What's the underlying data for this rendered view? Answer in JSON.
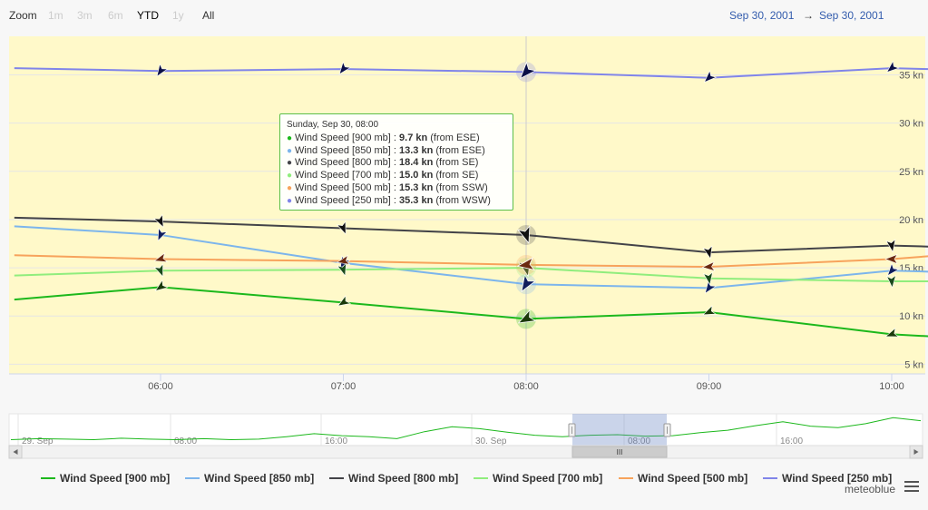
{
  "zoom": {
    "label": "Zoom",
    "buttons": [
      {
        "label": "1m",
        "state": "disabled"
      },
      {
        "label": "3m",
        "state": "disabled"
      },
      {
        "label": "6m",
        "state": "disabled"
      },
      {
        "label": "YTD",
        "state": "active"
      },
      {
        "label": "1y",
        "state": "disabled"
      },
      {
        "label": "All",
        "state": "normal"
      }
    ]
  },
  "range": {
    "from": "Sep 30, 2001",
    "arrow": "→",
    "to": "Sep 30, 2001"
  },
  "tooltip": {
    "header": "Sunday, Sep 30, 08:00",
    "rows": [
      {
        "name": "Wind Speed [900 mb]",
        "value": "9.7 kn",
        "dir": "(from ESE)",
        "color": "#1cb81c"
      },
      {
        "name": "Wind Speed [850 mb]",
        "value": "13.3 kn",
        "dir": "(from ESE)",
        "color": "#7cb5ec"
      },
      {
        "name": "Wind Speed [800 mb]",
        "value": "18.4 kn",
        "dir": "(from SE)",
        "color": "#434348"
      },
      {
        "name": "Wind Speed [700 mb]",
        "value": "15.0 kn",
        "dir": "(from SE)",
        "color": "#90ed7d"
      },
      {
        "name": "Wind Speed [500 mb]",
        "value": "15.3 kn",
        "dir": "(from SSW)",
        "color": "#f7a35c"
      },
      {
        "name": "Wind Speed [250 mb]",
        "value": "35.3 kn",
        "dir": "(from WSW)",
        "color": "#8085e9"
      }
    ]
  },
  "credit": "meteoblue",
  "chart_data": {
    "type": "line",
    "x": [
      "05:12",
      "06:00",
      "07:00",
      "08:00",
      "09:00",
      "10:00",
      "10:12"
    ],
    "xticks": [
      "06:00",
      "07:00",
      "08:00",
      "09:00",
      "10:00"
    ],
    "yticks": [
      "5 kn",
      "10 kn",
      "15 kn",
      "20 kn",
      "25 kn",
      "30 kn",
      "35 kn"
    ],
    "ylim": [
      4,
      39
    ],
    "series": [
      {
        "name": "Wind Speed [900 mb]",
        "color": "#1cb81c",
        "values": [
          11.7,
          13.0,
          11.4,
          9.7,
          10.4,
          8.1,
          7.9
        ]
      },
      {
        "name": "Wind Speed [850 mb]",
        "color": "#7cb5ec",
        "values": [
          19.3,
          18.4,
          15.5,
          13.3,
          12.9,
          14.7,
          14.6
        ]
      },
      {
        "name": "Wind Speed [800 mb]",
        "color": "#434348",
        "values": [
          20.2,
          19.8,
          19.1,
          18.4,
          16.6,
          17.3,
          17.2
        ]
      },
      {
        "name": "Wind Speed [700 mb]",
        "color": "#90ed7d",
        "values": [
          14.2,
          14.7,
          14.8,
          15.0,
          13.9,
          13.6,
          13.6
        ]
      },
      {
        "name": "Wind Speed [500 mb]",
        "color": "#f7a35c",
        "values": [
          16.3,
          15.9,
          15.7,
          15.3,
          15.1,
          15.9,
          16.2
        ]
      },
      {
        "name": "Wind Speed [250 mb]",
        "color": "#8085e9",
        "values": [
          35.7,
          35.4,
          35.6,
          35.3,
          34.7,
          35.7,
          35.6
        ]
      }
    ],
    "barb_colors": [
      "#1a3a0a",
      "#101d5c",
      "#111111",
      "#1b4a1b",
      "#6b2a10",
      "#0a0f46"
    ],
    "navigator": {
      "labels": [
        "29. Sep",
        "08:00",
        "16:00",
        "30. Sep",
        "08:00",
        "16:00"
      ],
      "values": [
        8,
        8.2,
        8.1,
        8.0,
        8.3,
        8.1,
        8.0,
        8.2,
        8.0,
        8.1,
        8.6,
        9.2,
        8.8,
        8.6,
        8.2,
        9.6,
        10.6,
        10.2,
        9.5,
        8.9,
        8.6,
        8.9,
        9.0,
        8.7,
        8.8,
        9.4,
        9.9,
        10.8,
        11.6,
        10.7,
        10.4,
        11.2,
        12.4,
        11.8
      ],
      "scrollbar_label": "III"
    }
  }
}
